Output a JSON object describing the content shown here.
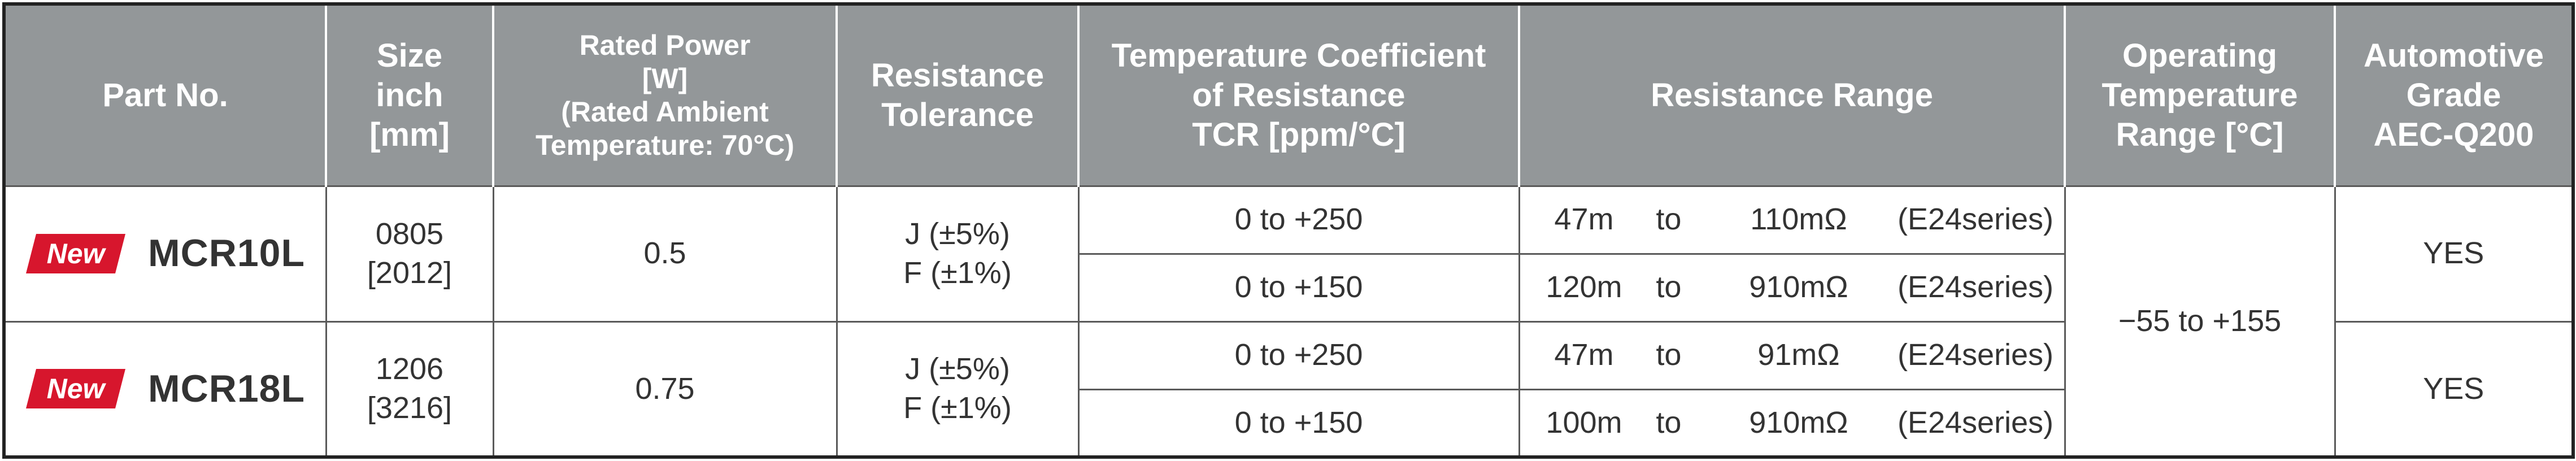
{
  "header": {
    "part_no": "Part No.",
    "size": [
      "Size",
      "inch",
      "[mm]"
    ],
    "rated_power": [
      "Rated Power",
      "[W]",
      "(Rated Ambient",
      "Temperature: 70°C)"
    ],
    "tolerance": [
      "Resistance",
      "Tolerance"
    ],
    "tcr": [
      "Temperature Coefficient",
      "of Resistance",
      "TCR [ppm/°C]"
    ],
    "resistance_range": "Resistance Range",
    "operating_temp": [
      "Operating",
      "Temperature",
      "Range [°C]"
    ],
    "automotive": [
      "Automotive",
      "Grade",
      "AEC-Q200"
    ]
  },
  "badge": {
    "text": "New",
    "color": "#d7162d"
  },
  "operating_temp_value": "−55 to +155",
  "products": [
    {
      "part": "MCR10L",
      "size": [
        "0805",
        "[2012]"
      ],
      "power": "0.5",
      "tolerance": [
        "J (±5%)",
        "F (±1%)"
      ],
      "automotive": "YES",
      "rows": [
        {
          "tcr": "0 to +250",
          "from": "47m",
          "to": "to",
          "value": "110mΩ",
          "series": "(E24series)"
        },
        {
          "tcr": "0 to +150",
          "from": "120m",
          "to": "to",
          "value": "910mΩ",
          "series": "(E24series)"
        }
      ]
    },
    {
      "part": "MCR18L",
      "size": [
        "1206",
        "[3216]"
      ],
      "power": "0.75",
      "tolerance": [
        "J (±5%)",
        "F (±1%)"
      ],
      "automotive": "YES",
      "rows": [
        {
          "tcr": "0 to +250",
          "from": "47m",
          "to": "to",
          "value": "91mΩ",
          "series": "(E24series)"
        },
        {
          "tcr": "0 to +150",
          "from": "100m",
          "to": "to",
          "value": "910mΩ",
          "series": "(E24series)"
        }
      ]
    }
  ]
}
